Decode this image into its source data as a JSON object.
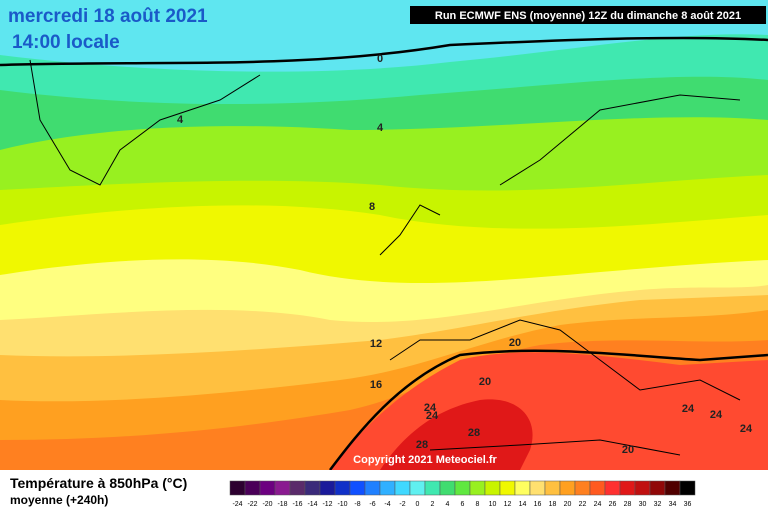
{
  "header": {
    "date": "mercredi 18 août 2021",
    "time": "14:00 locale",
    "run": "Run ECMWF ENS (moyenne) 12Z du dimanche 8 août 2021"
  },
  "contour_labels": [
    "0",
    "4",
    "4",
    "8",
    "12",
    "16",
    "20",
    "20",
    "24",
    "24",
    "28",
    "28",
    "24",
    "24",
    "24",
    "20"
  ],
  "copyright": "Copyright 2021 Meteociel.fr",
  "footer": {
    "title": "Température à 850hPa (°C)",
    "subtitle": "moyenne   (+240h)"
  },
  "legend": {
    "labels": [
      -24,
      -22,
      -20,
      -18,
      -16,
      -14,
      -12,
      -10,
      -8,
      -6,
      -4,
      -2,
      0,
      2,
      4,
      6,
      8,
      10,
      12,
      14,
      16,
      18,
      20,
      22,
      24,
      26,
      28,
      30,
      32,
      34,
      36
    ],
    "colors": [
      "#2d0030",
      "#4a0058",
      "#6c0080",
      "#8a1a90",
      "#5a2a6a",
      "#3a2a7a",
      "#1a1a9a",
      "#1030c8",
      "#1050ff",
      "#2080ff",
      "#30b0ff",
      "#40d8ff",
      "#60f0f0",
      "#40e8b0",
      "#40dc70",
      "#60e840",
      "#98f020",
      "#c8f400",
      "#f0f800",
      "#ffff60",
      "#ffe070",
      "#ffc040",
      "#ffa020",
      "#ff8020",
      "#ff5a20",
      "#ff3030",
      "#e01818",
      "#c01010",
      "#900808",
      "#500000",
      "#000000"
    ]
  }
}
